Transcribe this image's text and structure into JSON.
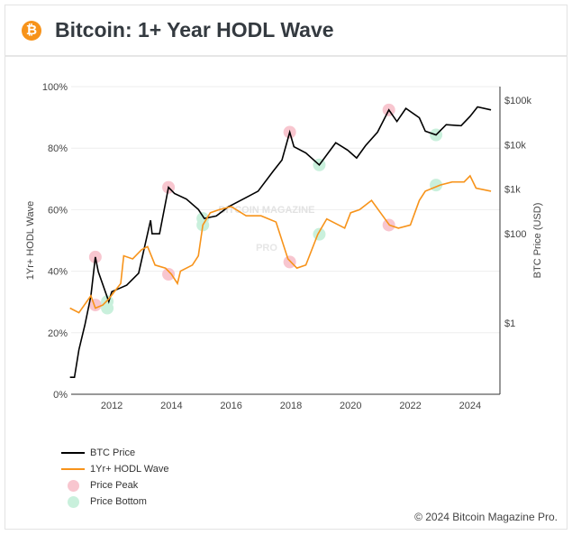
{
  "header": {
    "title": "Bitcoin: 1+ Year HODL Wave",
    "icon": "bitcoin-icon"
  },
  "footer": "© 2024 Bitcoin Magazine Pro.",
  "watermark": "BITCOIN MAGAZINE PRO",
  "chart_data": {
    "type": "line",
    "xlim": [
      2010.64,
      2025.0
    ],
    "x_ticks": [
      "2012",
      "2014",
      "2016",
      "2018",
      "2020",
      "2022",
      "2024"
    ],
    "y_left": {
      "label": "1Yr+ HODL Wave",
      "range": [
        0,
        100
      ],
      "ticks": [
        "0%",
        "20%",
        "40%",
        "60%",
        "80%",
        "100%"
      ]
    },
    "y_right": {
      "label": "BTC Price (USD)",
      "scale": "log",
      "range": [
        0.025,
        200000
      ],
      "ticks": [
        {
          "v": 1,
          "t": "$1"
        },
        {
          "v": 100,
          "t": "$100"
        },
        {
          "v": 1000,
          "t": "$1k"
        },
        {
          "v": 10000,
          "t": "$10k"
        },
        {
          "v": 100000,
          "t": "$100k"
        }
      ]
    },
    "grid": true,
    "legend_placement": "bottom-left",
    "colors": {
      "price": "#000000",
      "hodl": "#f7931a",
      "peak": "#f8c6cf",
      "bottom": "#c9f0dc"
    },
    "series": [
      {
        "name": "BTC Price",
        "axis": "right",
        "x": [
          2010.6,
          2010.75,
          2010.9,
          2011.1,
          2011.3,
          2011.45,
          2011.55,
          2011.9,
          2012.0,
          2012.5,
          2012.9,
          2013.3,
          2013.35,
          2013.6,
          2013.9,
          2014.1,
          2014.5,
          2014.9,
          2015.1,
          2015.5,
          2015.9,
          2016.5,
          2016.9,
          2017.4,
          2017.7,
          2017.96,
          2018.1,
          2018.5,
          2018.95,
          2019.5,
          2019.9,
          2020.2,
          2020.5,
          2020.9,
          2021.28,
          2021.55,
          2021.85,
          2022.3,
          2022.5,
          2022.86,
          2023.2,
          2023.7,
          2024.0,
          2024.25,
          2024.7
        ],
        "y": [
          0.06,
          0.06,
          0.25,
          0.9,
          4,
          30,
          14,
          3,
          5,
          7,
          13,
          200,
          100,
          100,
          1100,
          800,
          600,
          350,
          220,
          250,
          400,
          650,
          900,
          2500,
          4500,
          19000,
          9000,
          6500,
          3500,
          11000,
          7500,
          5000,
          9500,
          19000,
          60000,
          33000,
          65000,
          40000,
          20000,
          16500,
          28000,
          26500,
          43000,
          70000,
          60000
        ]
      },
      {
        "name": "1Yr+ HODL Wave",
        "axis": "left",
        "x": [
          2010.6,
          2010.9,
          2011.3,
          2011.45,
          2011.7,
          2011.9,
          2012.3,
          2012.4,
          2012.7,
          2013.0,
          2013.2,
          2013.45,
          2013.8,
          2014.0,
          2014.2,
          2014.3,
          2014.7,
          2014.9,
          2015.05,
          2015.3,
          2015.6,
          2016.0,
          2016.5,
          2017.0,
          2017.5,
          2017.9,
          2018.2,
          2018.5,
          2018.9,
          2019.2,
          2019.6,
          2019.8,
          2020.0,
          2020.3,
          2020.7,
          2021.0,
          2021.3,
          2021.6,
          2022.0,
          2022.3,
          2022.5,
          2023.0,
          2023.4,
          2023.8,
          2024.0,
          2024.2,
          2024.7
        ],
        "y": [
          28,
          26.5,
          32,
          28,
          29,
          31,
          36,
          45,
          44,
          47,
          48,
          42,
          41,
          39,
          36,
          40,
          42,
          45,
          55,
          59,
          60,
          61,
          58,
          58,
          56,
          44,
          41,
          42,
          52,
          57,
          55,
          54,
          59,
          60,
          63,
          59,
          55,
          54,
          55,
          63,
          66,
          68,
          69,
          69,
          71,
          67,
          66
        ]
      }
    ],
    "markers": [
      {
        "name": "Price Peak",
        "x": [
          2011.45,
          2013.9,
          2017.96,
          2021.28
        ],
        "price": [
          30,
          1100,
          19000,
          60000
        ],
        "hodl": [
          29,
          39,
          43,
          55
        ]
      },
      {
        "name": "Price Bottom",
        "x": [
          2011.85,
          2015.05,
          2018.95,
          2022.86
        ],
        "price": [
          3,
          220,
          3500,
          16500
        ],
        "hodl": [
          28,
          55,
          52,
          68
        ]
      }
    ]
  }
}
